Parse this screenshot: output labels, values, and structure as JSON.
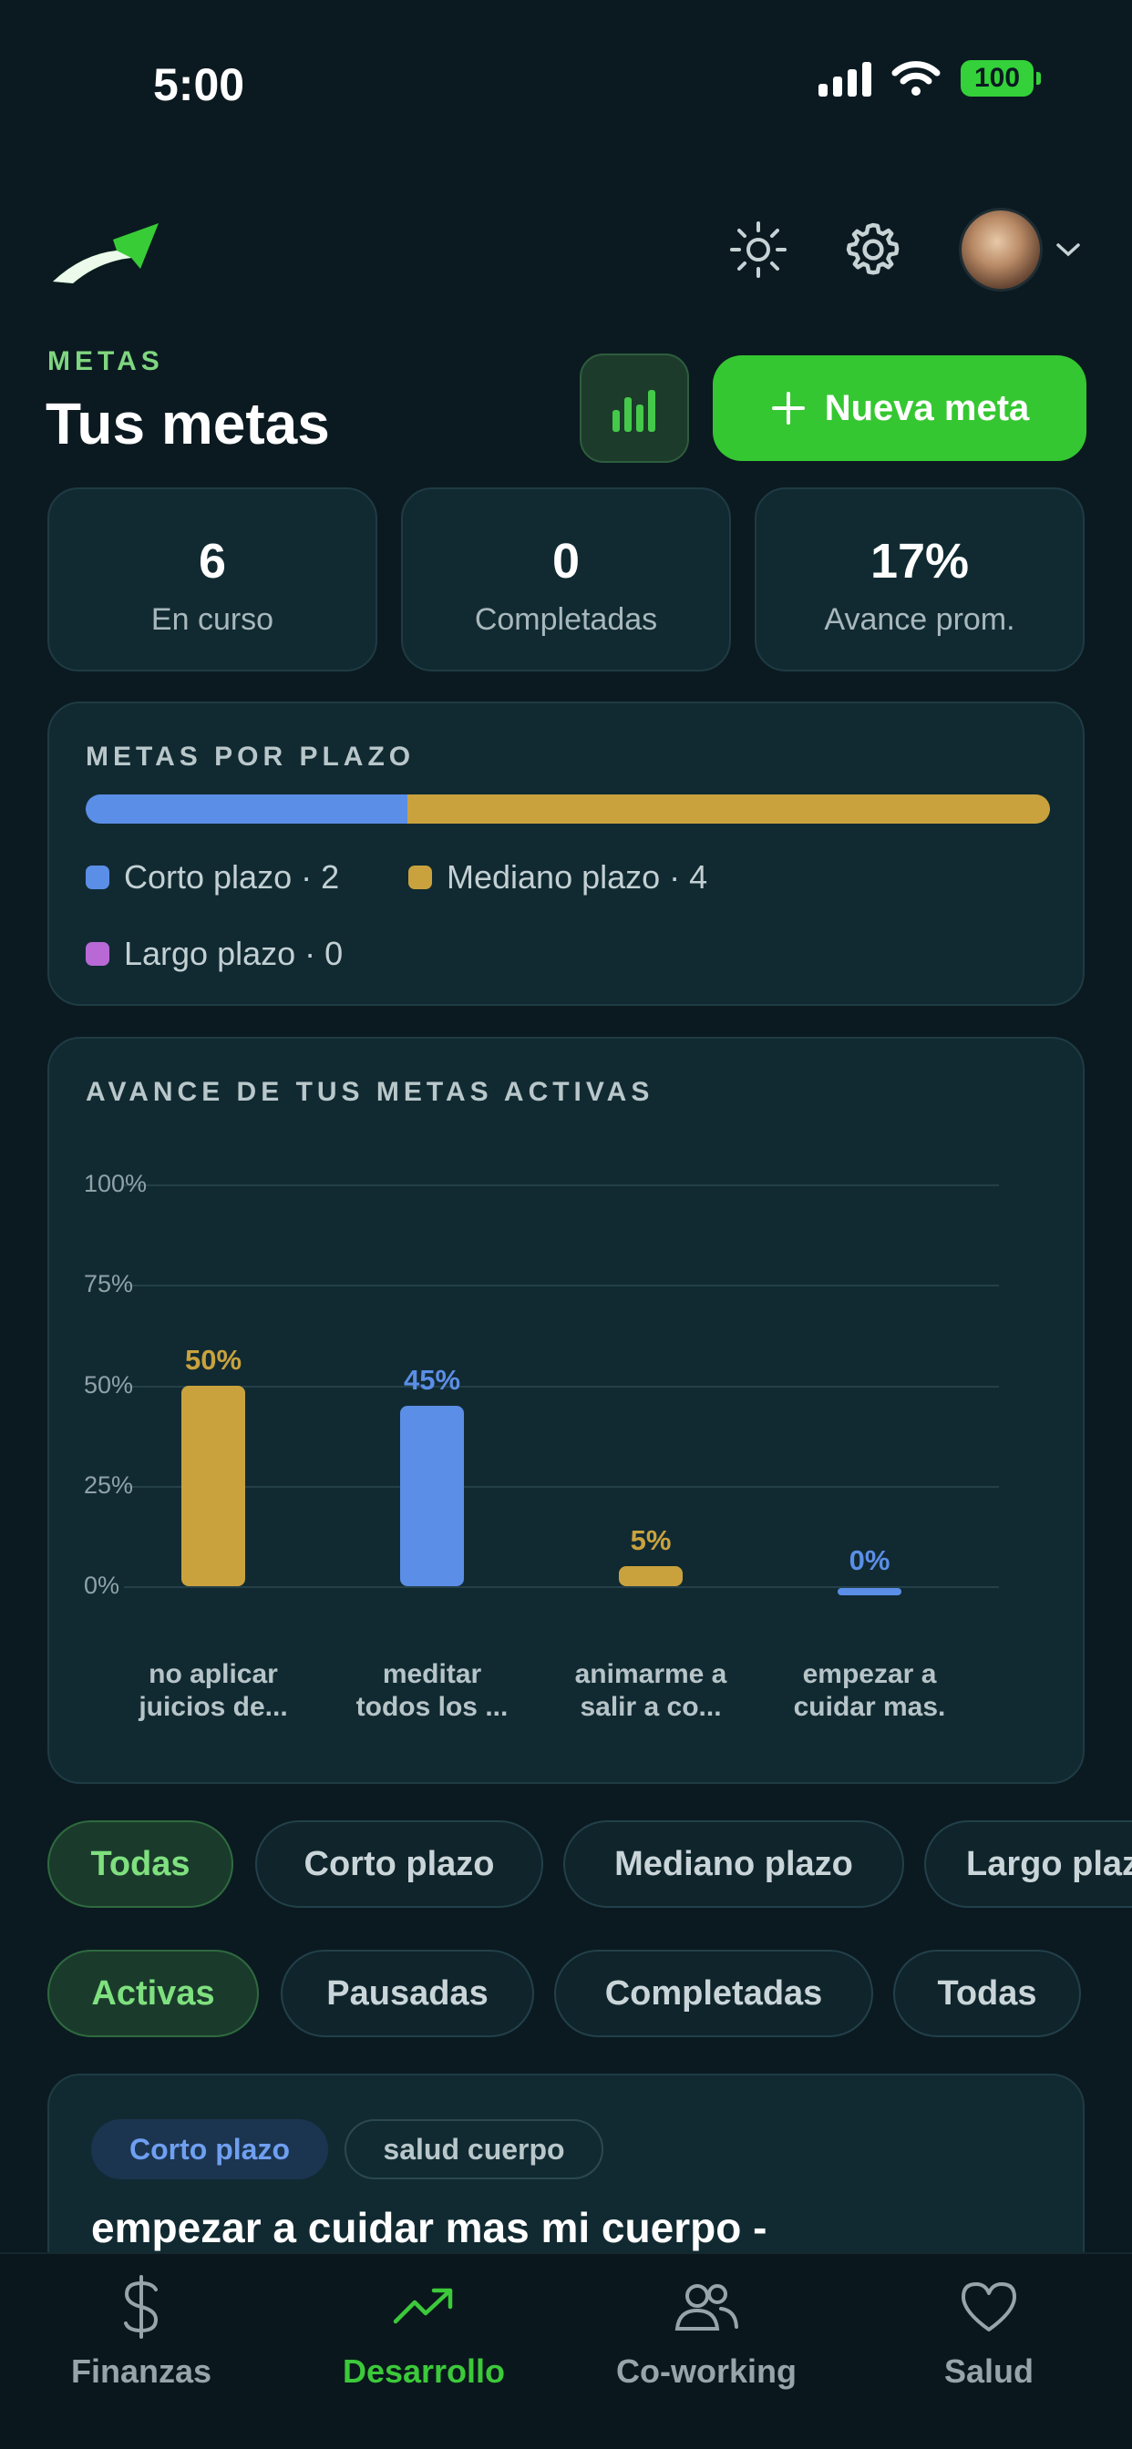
{
  "status_bar": {
    "time": "5:00",
    "battery": "100"
  },
  "header": {
    "eyebrow": "METAS",
    "title": "Tus metas",
    "new_goal_label": "Nueva meta"
  },
  "stats": [
    {
      "value": "6",
      "label": "En curso"
    },
    {
      "value": "0",
      "label": "Completadas"
    },
    {
      "value": "17%",
      "label": "Avance prom."
    }
  ],
  "plazo_card": {
    "title": "METAS POR PLAZO",
    "legend": [
      {
        "label": "Corto plazo · 2",
        "color": "#5b8ee6",
        "count": 2
      },
      {
        "label": "Mediano plazo · 4",
        "color": "#c9a23e",
        "count": 4
      },
      {
        "label": "Largo plazo · 0",
        "color": "#b869d6",
        "count": 0
      }
    ]
  },
  "progress_card": {
    "title": "AVANCE DE TUS METAS ACTIVAS"
  },
  "chart_data": {
    "type": "bar",
    "title": "AVANCE DE TUS METAS ACTIVAS",
    "ylim": [
      0,
      100
    ],
    "yticks": [
      "100%",
      "75%",
      "50%",
      "25%",
      "0%"
    ],
    "categories": [
      "no aplicar juicios de...",
      "meditar todos los ...",
      "animarme a salir a co...",
      "empezar a cuidar mas."
    ],
    "category_lines": [
      [
        "no aplicar",
        "juicios de..."
      ],
      [
        "meditar",
        "todos los ..."
      ],
      [
        "animarme a",
        "salir a co..."
      ],
      [
        "empezar a",
        "cuidar mas."
      ]
    ],
    "values": [
      50,
      45,
      5,
      0
    ],
    "value_labels": [
      "50%",
      "45%",
      "5%",
      "0%"
    ],
    "colors": [
      "#c9a23e",
      "#5b8ee6",
      "#c9a23e",
      "#5b8ee6"
    ],
    "grid": true
  },
  "filters": {
    "plazo": [
      "Todas",
      "Corto plazo",
      "Mediano plazo",
      "Largo plazo"
    ],
    "estado": [
      "Activas",
      "Pausadas",
      "Completadas",
      "Todas"
    ]
  },
  "goal": {
    "tags": [
      "Corto plazo",
      "salud cuerpo"
    ],
    "title": "empezar a cuidar mas mi cuerpo -"
  },
  "nav": [
    {
      "label": "Finanzas",
      "icon": "dollar-icon"
    },
    {
      "label": "Desarrollo",
      "icon": "trending-up-icon"
    },
    {
      "label": "Co-working",
      "icon": "users-icon"
    },
    {
      "label": "Salud",
      "icon": "heart-icon"
    }
  ]
}
